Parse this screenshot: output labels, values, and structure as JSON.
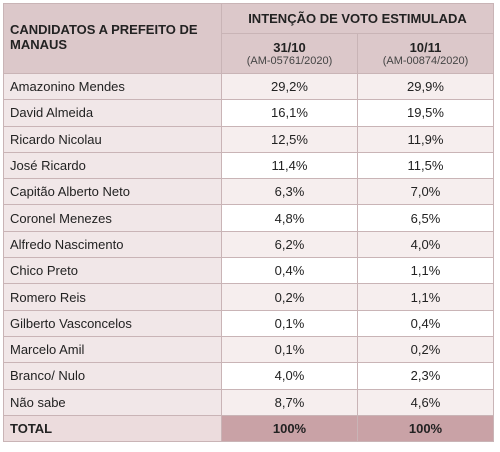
{
  "table": {
    "header": {
      "candidates": "CANDIDATOS A PREFEITO DE MANAUS",
      "group": "INTENÇÃO DE VOTO ESTIMULADA",
      "columns": [
        {
          "date": "31/10",
          "registration": "(AM-05761/2020)"
        },
        {
          "date": "10/11",
          "registration": "(AM-00874/2020)"
        }
      ]
    },
    "rows": [
      [
        "Amazonino Mendes",
        "29,2%",
        "29,9%"
      ],
      [
        "David Almeida",
        "16,1%",
        "19,5%"
      ],
      [
        "Ricardo Nicolau",
        "12,5%",
        "11,9%"
      ],
      [
        "José Ricardo",
        "11,4%",
        "11,5%"
      ],
      [
        "Capitão Alberto Neto",
        "6,3%",
        "7,0%"
      ],
      [
        "Coronel Menezes",
        "4,8%",
        "6,5%"
      ],
      [
        "Alfredo Nascimento",
        "6,2%",
        "4,0%"
      ],
      [
        "Chico Preto",
        "0,4%",
        "1,1%"
      ],
      [
        "Romero Reis",
        "0,2%",
        "1,1%"
      ],
      [
        "Gilberto Vasconcelos",
        "0,1%",
        "0,4%"
      ],
      [
        "Marcelo Amil",
        "0,1%",
        "0,2%"
      ],
      [
        "Branco/ Nulo",
        "4,0%",
        "2,3%"
      ],
      [
        "Não sabe",
        "8,7%",
        "4,6%"
      ]
    ],
    "total": [
      "TOTAL",
      "100%",
      "100%"
    ]
  }
}
